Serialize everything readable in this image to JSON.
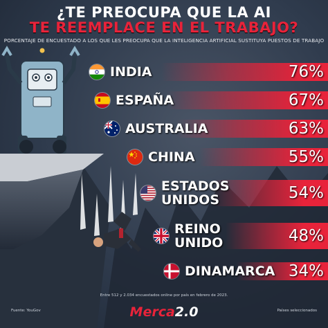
{
  "title_line1": "¿TE PREOCUPA QUE LA AI",
  "title_line2": "TE REEMPLACE EN EL TRABAJO?",
  "subtitle": "PORCENTAJE DE ENCUESTADO A LOS QUE LES PREOCUPA QUE LA INTELIGENCIA ARTIFICIAL SUSTITUYA PUESTOS DE TRABAJO",
  "source": "Fuente: YouGov",
  "note": "Entre 512 y 2.034 encuestados online por país en febrero de 2023.",
  "selection_note": "Países seleccionados",
  "logo_main": "Merca",
  "logo_version": "2.0",
  "colors": {
    "accent": "#e8233a",
    "background": "#2f3b4d"
  },
  "chart_data": {
    "type": "bar",
    "unit": "%",
    "categories": [
      "INDIA",
      "ESPAÑA",
      "AUSTRALIA",
      "CHINA",
      "ESTADOS UNIDOS",
      "REINO UNIDO",
      "DINAMARCA"
    ],
    "category_lines": [
      [
        "INDIA"
      ],
      [
        "ESPAÑA"
      ],
      [
        "AUSTRALIA"
      ],
      [
        "CHINA"
      ],
      [
        "ESTADOS",
        "UNIDOS"
      ],
      [
        "REINO",
        "UNIDO"
      ],
      [
        "DINAMARCA"
      ]
    ],
    "values": [
      76,
      67,
      63,
      55,
      54,
      48,
      34
    ],
    "value_labels": [
      "76%",
      "67%",
      "63%",
      "55%",
      "54%",
      "48%",
      "34%"
    ],
    "flags": [
      "india-flag",
      "spain-flag",
      "australia-flag",
      "china-flag",
      "usa-flag",
      "uk-flag",
      "denmark-flag"
    ],
    "bar_color": "#e8233a",
    "xlim": [
      0,
      100
    ]
  }
}
